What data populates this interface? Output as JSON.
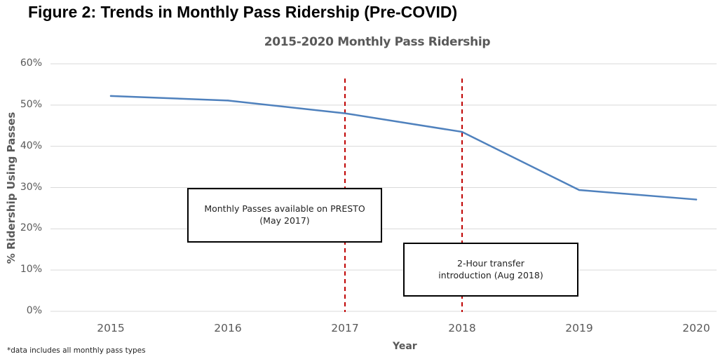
{
  "figure_title": "Figure 2: Trends in Monthly Pass Ridership (Pre-COVID)",
  "footnote": "*data includes all monthly pass types",
  "chart_data": {
    "type": "line",
    "title": "2015-2020 Monthly Pass Ridership",
    "xlabel": "Year",
    "ylabel": "% Ridership Using Passes",
    "categories": [
      "2015",
      "2016",
      "2017",
      "2018",
      "2019",
      "2020"
    ],
    "series": [
      {
        "name": "Monthly Pass Ridership",
        "values": [
          52.2,
          51.1,
          48.0,
          43.5,
          29.4,
          27.1
        ],
        "color": "#4F81BD"
      }
    ],
    "ylim": [
      0,
      60
    ],
    "yticks": [
      0,
      10,
      20,
      30,
      40,
      50,
      60
    ],
    "ytick_labels": [
      "0%",
      "10%",
      "20%",
      "30%",
      "40%",
      "50%",
      "60%"
    ],
    "grid": true,
    "legend": "none",
    "reference_lines": [
      {
        "x": "2017",
        "style": "dashed",
        "color": "#C00000"
      },
      {
        "x": "2018",
        "style": "dashed",
        "color": "#C00000"
      }
    ],
    "annotations": [
      {
        "text": "Monthly Passes available on PRESTO (May 2017)",
        "near": "2017"
      },
      {
        "text": "2-Hour transfer introduction (Aug 2018)",
        "near": "2018"
      }
    ]
  }
}
